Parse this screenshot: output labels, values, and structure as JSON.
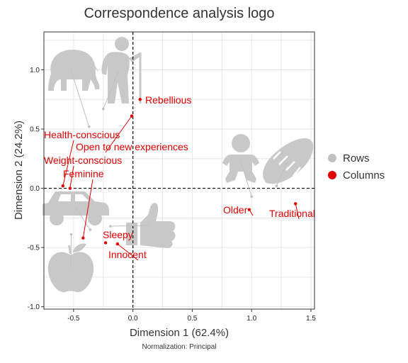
{
  "chart_data": {
    "type": "scatter",
    "title": "Correspondence analysis logo",
    "xlabel": "Dimension 1 (62.4%)",
    "ylabel": "Dimension 2 (24.2%)",
    "caption": "Normalization: Principal",
    "xlim": [
      -0.75,
      1.53
    ],
    "ylim": [
      -1.02,
      1.32
    ],
    "x_ticks": [
      "-0.5",
      "0.0",
      "0.5",
      "1.0",
      "1.5"
    ],
    "x_tick_values": [
      -0.5,
      0,
      0.5,
      1.0,
      1.5
    ],
    "y_ticks": [
      "-1.0",
      "-0.5",
      "0.0",
      "0.5",
      "1.0"
    ],
    "y_tick_values": [
      -1.0,
      -0.5,
      0,
      0.5,
      1.0
    ],
    "grid": true,
    "legend_position": "right",
    "series": [
      {
        "name": "Rows",
        "color": "#c0c0c0",
        "points": [
          {
            "icon": "elephant-icon",
            "x": -0.37,
            "y": 0.52
          },
          {
            "icon": "elderly-person-icon",
            "x": -0.25,
            "y": 0.67
          },
          {
            "icon": "baby-icon",
            "x": 1.0,
            "y": -0.07
          },
          {
            "icon": "bread-icon",
            "x": 1.21,
            "y": 0.02
          },
          {
            "icon": "car-icon",
            "x": -0.36,
            "y": -0.35
          },
          {
            "icon": "thumbs-up-icon",
            "x": -0.19,
            "y": -0.32
          },
          {
            "icon": "apple-icon",
            "x": -0.52,
            "y": -0.39
          }
        ]
      },
      {
        "name": "Columns",
        "color": "#e00000",
        "points": [
          {
            "label": "Rebellious",
            "x": 0.06,
            "y": 0.75
          },
          {
            "label": "Open to new experiences",
            "x": -0.01,
            "y": 0.61
          },
          {
            "label": "Health-conscious",
            "x": -0.59,
            "y": 0.02
          },
          {
            "label": "Weight-conscious",
            "x": -0.53,
            "y": 0.0
          },
          {
            "label": "Feminine",
            "x": -0.42,
            "y": -0.42
          },
          {
            "label": "Sleepy",
            "x": -0.23,
            "y": -0.46
          },
          {
            "label": "Innocent",
            "x": -0.13,
            "y": -0.47
          },
          {
            "label": "Older",
            "x": 0.98,
            "y": -0.18
          },
          {
            "label": "Traditional",
            "x": 1.37,
            "y": -0.13
          }
        ]
      }
    ]
  }
}
